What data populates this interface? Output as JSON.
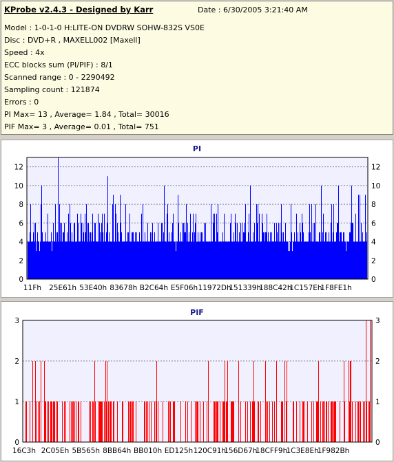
{
  "info": {
    "title": "KProbe v2.4.3 - Designed by Karr",
    "date": "Date : 6/30/2005 3:21:40 AM",
    "lines": [
      "Model : 1-0-1-0 H:LITE-ON DVDRW SOHW-832S  VS0E",
      "Disc : DVD+R , MAXELL002 [Maxell]",
      "Speed : 4x",
      "ECC blocks sum (PI/PIF) : 8/1",
      "Scanned range : 0 - 2290492",
      "Sampling count : 121874",
      "Errors : 0",
      "PI Max= 13 , Average= 1.84 , Total= 30016",
      "PIF Max= 3 , Average= 0.01 , Total= 751"
    ]
  },
  "colors": {
    "pi": "#0000ff",
    "pif": "#ff0000",
    "plot_bg": "#f0f0ff"
  },
  "chart_data": [
    {
      "type": "bar",
      "title": "PI",
      "ylim": [
        0,
        13
      ],
      "yticks": [
        0,
        2,
        4,
        6,
        8,
        10,
        12
      ],
      "xticks": [
        "11Fh",
        "25E61h",
        "53E40h",
        "83678h",
        "B2C64h",
        "E5F06h",
        "11972Dh",
        "151339h",
        "188C42h",
        "1C157Eh",
        "1F8FE1h"
      ],
      "grid": true,
      "series": [
        {
          "max": 13,
          "average": 1.84,
          "total": 30016
        }
      ]
    },
    {
      "type": "bar",
      "title": "PIF",
      "ylim": [
        0,
        3
      ],
      "yticks": [
        0,
        1,
        2,
        3
      ],
      "xticks": [
        "16C3h",
        "2C05Eh",
        "5B565h",
        "8BB64h",
        "BB010h",
        "ED125h",
        "120C91h",
        "156D67h",
        "18CFF9h",
        "1C3E8Eh",
        "1F982Bh"
      ],
      "grid": true,
      "series": [
        {
          "max": 3,
          "average": 0.01,
          "total": 751
        }
      ]
    }
  ]
}
